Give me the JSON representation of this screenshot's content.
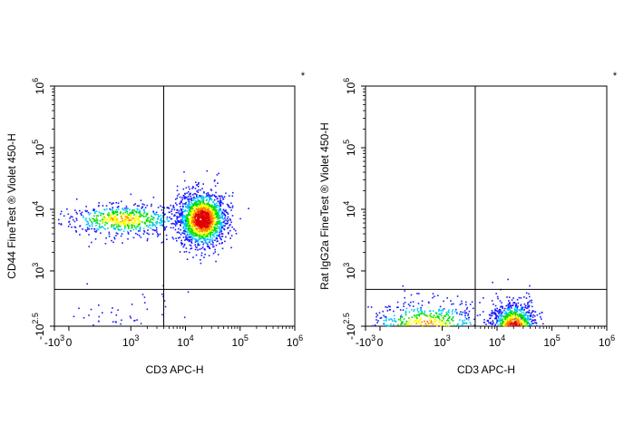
{
  "chart_data": [
    {
      "type": "scatter",
      "panel": "left",
      "xlabel": "CD3 APC-H",
      "ylabel": "CD44  FineTest ® Violet 450-H",
      "corner_mark": "*",
      "x_scale": "biexponential",
      "y_scale": "biexponential",
      "xlim": [
        -1000,
        1000000
      ],
      "ylim": [
        -316,
        1000000
      ],
      "x_ticks": [
        {
          "value": -1000,
          "base": "-10",
          "exp": "3"
        },
        {
          "value": 0,
          "base": "0",
          "exp": ""
        },
        {
          "value": 1000,
          "base": "10",
          "exp": "3"
        },
        {
          "value": 10000,
          "base": "10",
          "exp": "4"
        },
        {
          "value": 100000,
          "base": "10",
          "exp": "5"
        },
        {
          "value": 1000000,
          "base": "10",
          "exp": "6"
        }
      ],
      "y_ticks": [
        {
          "value": -316,
          "base": "-10",
          "exp": "2.5"
        },
        {
          "value": 1000,
          "base": "10",
          "exp": "3"
        },
        {
          "value": 10000,
          "base": "10",
          "exp": "4"
        },
        {
          "value": 100000,
          "base": "10",
          "exp": "5"
        },
        {
          "value": 1000000,
          "base": "10",
          "exp": "6"
        }
      ],
      "gate": {
        "x": 4000,
        "y": 500
      },
      "populations": [
        {
          "center": [
            700,
            7000
          ],
          "spread": [
            0.55,
            0.13
          ],
          "count": 650,
          "density": "high"
        },
        {
          "center": [
            20000,
            7000
          ],
          "spread": [
            0.22,
            0.22
          ],
          "count": 1700,
          "density": "very-high"
        },
        {
          "center": [
            800,
            150
          ],
          "spread": [
            0.5,
            0.25
          ],
          "count": 70,
          "density": "low"
        }
      ]
    },
    {
      "type": "scatter",
      "panel": "right",
      "xlabel": "CD3 APC-H",
      "ylabel": "Rat IgG2a  FineTest ® Violet 450-H",
      "corner_mark": "*",
      "x_scale": "biexponential",
      "y_scale": "biexponential",
      "xlim": [
        -1000,
        1000000
      ],
      "ylim": [
        -316,
        1000000
      ],
      "x_ticks": [
        {
          "value": -1000,
          "base": "-10",
          "exp": "3"
        },
        {
          "value": 0,
          "base": "0",
          "exp": ""
        },
        {
          "value": 1000,
          "base": "10",
          "exp": "3"
        },
        {
          "value": 10000,
          "base": "10",
          "exp": "4"
        },
        {
          "value": 100000,
          "base": "10",
          "exp": "5"
        },
        {
          "value": 1000000,
          "base": "10",
          "exp": "6"
        }
      ],
      "y_ticks": [
        {
          "value": -316,
          "base": "-10",
          "exp": "2.5"
        },
        {
          "value": 1000,
          "base": "10",
          "exp": "3"
        },
        {
          "value": 10000,
          "base": "10",
          "exp": "4"
        },
        {
          "value": 100000,
          "base": "10",
          "exp": "5"
        },
        {
          "value": 1000000,
          "base": "10",
          "exp": "6"
        }
      ],
      "gate": {
        "x": 4000,
        "y": 500
      },
      "populations": [
        {
          "center": [
            500,
            120
          ],
          "spread": [
            0.55,
            0.2
          ],
          "count": 700,
          "density": "high"
        },
        {
          "center": [
            20000,
            80
          ],
          "spread": [
            0.2,
            0.22
          ],
          "count": 1500,
          "density": "very-high"
        }
      ]
    }
  ],
  "colors": {
    "low": "#1a1aff",
    "mid_low": "#00c8ff",
    "mid": "#00e000",
    "mid_high": "#ffff00",
    "high": "#ff8000",
    "peak": "#e00000",
    "axis": "#000000",
    "gate": "#000000"
  }
}
